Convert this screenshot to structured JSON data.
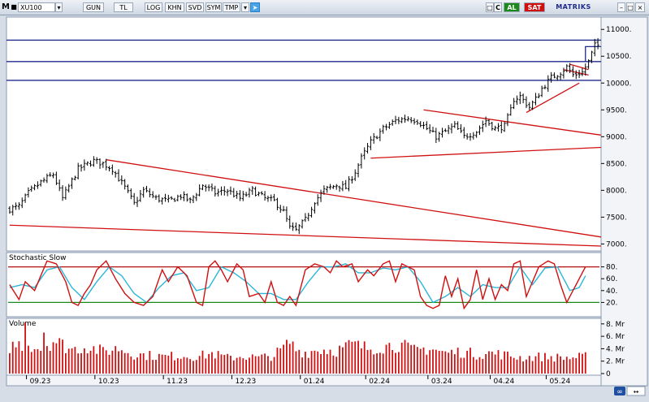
{
  "toolbar": {
    "menu_letter": "M",
    "symbol": "XU100",
    "buttons": [
      "GUN",
      "TL",
      "LOG",
      "KHN",
      "SVD",
      "SYM",
      "TMP"
    ],
    "right_c": "C",
    "buy": "AL",
    "sell": "SAT",
    "brand": "MATRIKS",
    "colors": {
      "buy": "#1a8a1a",
      "sell": "#d01010",
      "accent": "#1f2a8c"
    }
  },
  "chart_data": [
    {
      "type": "candlestick",
      "title": "",
      "ylim": [
        6900,
        11200
      ],
      "yticks": [
        "11000.",
        "10500.",
        "10000.",
        "9500.",
        "9000.",
        "8500.",
        "8000.",
        "7500.",
        "7000."
      ],
      "ytick_values": [
        11000,
        10500,
        10000,
        9500,
        9000,
        8500,
        8000,
        7500,
        7000
      ],
      "xticks": [
        "09.23",
        "10.23",
        "11.23",
        "12.23",
        "01.24",
        "02.24",
        "03.24",
        "04.24",
        "05.24"
      ],
      "xtick_positions": [
        8,
        30,
        52,
        74,
        96,
        117,
        137,
        157,
        175
      ],
      "bar_count": 190,
      "anchors": [
        [
          0,
          7650
        ],
        [
          3,
          7700
        ],
        [
          6,
          7950
        ],
        [
          10,
          8150
        ],
        [
          14,
          8300
        ],
        [
          17,
          7850
        ],
        [
          22,
          8400
        ],
        [
          27,
          8550
        ],
        [
          30,
          8500
        ],
        [
          33,
          8400
        ],
        [
          37,
          8050
        ],
        [
          40,
          7750
        ],
        [
          43,
          8000
        ],
        [
          47,
          7850
        ],
        [
          51,
          7800
        ],
        [
          55,
          7900
        ],
        [
          58,
          7800
        ],
        [
          62,
          8100
        ],
        [
          66,
          7950
        ],
        [
          70,
          8000
        ],
        [
          74,
          7850
        ],
        [
          78,
          8000
        ],
        [
          82,
          7850
        ],
        [
          85,
          7800
        ],
        [
          88,
          7600
        ],
        [
          90,
          7300
        ],
        [
          92,
          7250
        ],
        [
          95,
          7450
        ],
        [
          98,
          7800
        ],
        [
          101,
          8000
        ],
        [
          105,
          8100
        ],
        [
          108,
          8050
        ],
        [
          111,
          8350
        ],
        [
          113,
          8600
        ],
        [
          116,
          8900
        ],
        [
          120,
          9150
        ],
        [
          124,
          9300
        ],
        [
          128,
          9350
        ],
        [
          131,
          9300
        ],
        [
          134,
          9150
        ],
        [
          137,
          9000
        ],
        [
          140,
          9100
        ],
        [
          143,
          9200
        ],
        [
          146,
          9000
        ],
        [
          150,
          9100
        ],
        [
          153,
          9300
        ],
        [
          156,
          9150
        ],
        [
          159,
          9200
        ],
        [
          161,
          9500
        ],
        [
          162,
          9700
        ],
        [
          164,
          9750
        ],
        [
          167,
          9550
        ],
        [
          169,
          9700
        ],
        [
          171,
          9900
        ],
        [
          174,
          10100
        ],
        [
          177,
          10200
        ],
        [
          179,
          10300
        ],
        [
          181,
          10150
        ],
        [
          184,
          10200
        ],
        [
          186,
          10400
        ],
        [
          188,
          10700
        ],
        [
          189,
          10700
        ]
      ],
      "horizontal_levels": [
        10800,
        10400,
        10050
      ],
      "trendlines": [
        [
          [
            31,
            8570
          ],
          [
            190,
            7130
          ]
        ],
        [
          [
            0,
            7350
          ],
          [
            190,
            6960
          ]
        ],
        [
          [
            133,
            9500
          ],
          [
            190,
            9030
          ]
        ],
        [
          [
            116,
            8600
          ],
          [
            190,
            8800
          ]
        ],
        [
          [
            166,
            9450
          ],
          [
            183,
            10000
          ]
        ],
        [
          [
            178,
            10250
          ],
          [
            186,
            10150
          ]
        ],
        [
          [
            180,
            10350
          ],
          [
            186,
            10250
          ]
        ]
      ]
    },
    {
      "type": "line",
      "title": "Stochastic Slow",
      "ylim": [
        0,
        100
      ],
      "yticks": [
        "80.",
        "60.",
        "40.",
        "20."
      ],
      "ytick_values": [
        80,
        60,
        40,
        20
      ],
      "levels": [
        80,
        20
      ],
      "k_anchors": [
        [
          0,
          50
        ],
        [
          3,
          25
        ],
        [
          5,
          55
        ],
        [
          8,
          40
        ],
        [
          12,
          90
        ],
        [
          15,
          85
        ],
        [
          18,
          55
        ],
        [
          20,
          20
        ],
        [
          22,
          15
        ],
        [
          24,
          35
        ],
        [
          26,
          50
        ],
        [
          28,
          75
        ],
        [
          30,
          85
        ],
        [
          31,
          90
        ],
        [
          34,
          60
        ],
        [
          37,
          35
        ],
        [
          40,
          20
        ],
        [
          43,
          15
        ],
        [
          46,
          30
        ],
        [
          49,
          75
        ],
        [
          51,
          55
        ],
        [
          54,
          80
        ],
        [
          57,
          65
        ],
        [
          60,
          20
        ],
        [
          62,
          15
        ],
        [
          64,
          80
        ],
        [
          66,
          90
        ],
        [
          68,
          75
        ],
        [
          70,
          55
        ],
        [
          73,
          85
        ],
        [
          75,
          75
        ],
        [
          77,
          30
        ],
        [
          80,
          35
        ],
        [
          82,
          20
        ],
        [
          84,
          55
        ],
        [
          86,
          20
        ],
        [
          88,
          15
        ],
        [
          90,
          30
        ],
        [
          92,
          15
        ],
        [
          95,
          75
        ],
        [
          98,
          85
        ],
        [
          101,
          80
        ],
        [
          103,
          70
        ],
        [
          105,
          90
        ],
        [
          107,
          80
        ],
        [
          110,
          85
        ],
        [
          112,
          55
        ],
        [
          115,
          75
        ],
        [
          117,
          65
        ],
        [
          120,
          85
        ],
        [
          122,
          90
        ],
        [
          124,
          55
        ],
        [
          126,
          85
        ],
        [
          128,
          80
        ],
        [
          130,
          75
        ],
        [
          132,
          30
        ],
        [
          134,
          15
        ],
        [
          136,
          10
        ],
        [
          138,
          15
        ],
        [
          140,
          65
        ],
        [
          142,
          30
        ],
        [
          144,
          60
        ],
        [
          146,
          10
        ],
        [
          148,
          25
        ],
        [
          150,
          75
        ],
        [
          152,
          25
        ],
        [
          154,
          60
        ],
        [
          156,
          25
        ],
        [
          158,
          50
        ],
        [
          160,
          40
        ],
        [
          162,
          85
        ],
        [
          164,
          90
        ],
        [
          166,
          30
        ],
        [
          168,
          55
        ],
        [
          170,
          80
        ],
        [
          173,
          90
        ],
        [
          175,
          85
        ],
        [
          177,
          50
        ],
        [
          179,
          20
        ],
        [
          181,
          40
        ],
        [
          183,
          60
        ],
        [
          185,
          80
        ]
      ],
      "d_anchors": [
        [
          0,
          45
        ],
        [
          4,
          50
        ],
        [
          8,
          45
        ],
        [
          12,
          75
        ],
        [
          16,
          80
        ],
        [
          20,
          45
        ],
        [
          24,
          25
        ],
        [
          28,
          55
        ],
        [
          32,
          80
        ],
        [
          36,
          65
        ],
        [
          40,
          35
        ],
        [
          44,
          20
        ],
        [
          48,
          45
        ],
        [
          52,
          65
        ],
        [
          56,
          70
        ],
        [
          60,
          40
        ],
        [
          64,
          45
        ],
        [
          68,
          80
        ],
        [
          72,
          70
        ],
        [
          76,
          55
        ],
        [
          80,
          35
        ],
        [
          84,
          35
        ],
        [
          88,
          25
        ],
        [
          92,
          25
        ],
        [
          96,
          55
        ],
        [
          100,
          80
        ],
        [
          104,
          80
        ],
        [
          108,
          85
        ],
        [
          112,
          70
        ],
        [
          116,
          70
        ],
        [
          120,
          78
        ],
        [
          124,
          75
        ],
        [
          128,
          80
        ],
        [
          132,
          55
        ],
        [
          136,
          20
        ],
        [
          140,
          30
        ],
        [
          144,
          45
        ],
        [
          148,
          30
        ],
        [
          152,
          50
        ],
        [
          156,
          45
        ],
        [
          160,
          45
        ],
        [
          164,
          80
        ],
        [
          168,
          50
        ],
        [
          172,
          78
        ],
        [
          176,
          80
        ],
        [
          180,
          40
        ],
        [
          183,
          45
        ],
        [
          185,
          65
        ]
      ]
    },
    {
      "type": "bar",
      "title": "Volume",
      "ylim": [
        0,
        8.5
      ],
      "yticks": [
        "8. Mr",
        "6. Mr",
        "4. Mr",
        "2. Mr",
        "0"
      ],
      "ytick_values": [
        8,
        6,
        4,
        2,
        0
      ],
      "bar_count": 186,
      "v_anchors": [
        [
          0,
          4.5
        ],
        [
          5,
          5.0
        ],
        [
          10,
          4.2
        ],
        [
          14,
          5.5
        ],
        [
          20,
          4.0
        ],
        [
          25,
          4.5
        ],
        [
          30,
          3.6
        ],
        [
          35,
          4.2
        ],
        [
          40,
          3.2
        ],
        [
          45,
          3.0
        ],
        [
          50,
          2.8
        ],
        [
          55,
          3.0
        ],
        [
          60,
          2.8
        ],
        [
          65,
          3.3
        ],
        [
          70,
          2.6
        ],
        [
          75,
          2.9
        ],
        [
          80,
          2.6
        ],
        [
          85,
          3.0
        ],
        [
          88,
          4.2
        ],
        [
          90,
          5.2
        ],
        [
          92,
          4.0
        ],
        [
          95,
          3.5
        ],
        [
          100,
          4.0
        ],
        [
          105,
          3.8
        ],
        [
          110,
          4.8
        ],
        [
          115,
          4.2
        ],
        [
          120,
          4.5
        ],
        [
          125,
          4.8
        ],
        [
          130,
          3.8
        ],
        [
          135,
          4.2
        ],
        [
          140,
          3.4
        ],
        [
          145,
          3.6
        ],
        [
          150,
          3.2
        ],
        [
          155,
          3.4
        ],
        [
          160,
          3.0
        ],
        [
          165,
          2.6
        ],
        [
          170,
          2.8
        ],
        [
          175,
          2.7
        ],
        [
          180,
          2.6
        ],
        [
          185,
          2.8
        ]
      ],
      "spikes": [
        [
          5,
          8.2
        ],
        [
          11,
          6.6
        ]
      ]
    }
  ]
}
